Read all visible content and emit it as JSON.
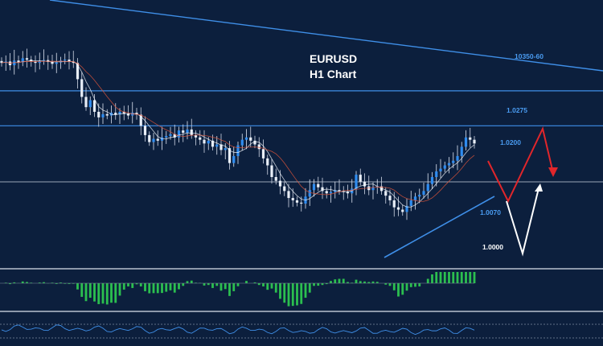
{
  "title": {
    "symbol": "EURUSD",
    "timeframe": "H1 Chart"
  },
  "levels": [
    {
      "name": "trendline-top",
      "label": "10350-60",
      "color": "#4a9cf2"
    },
    {
      "name": "r-1-0275",
      "label": "1.0275",
      "color": "#4a9cf2",
      "value": 1.0275
    },
    {
      "name": "r-1-0200",
      "label": "1.0200",
      "color": "#4a9cf2",
      "value": 1.02
    },
    {
      "name": "s-1-0070",
      "label": "1.0070",
      "color": "#4a9cf2",
      "value": 1.007
    },
    {
      "name": "s-1-0000",
      "label": "1.0000",
      "color": "#ffffff",
      "value": 1.0
    }
  ],
  "chart_data": {
    "type": "candlestick",
    "symbol": "EURUSD",
    "timeframe": "H1",
    "candles_close": [
      1.0335,
      1.0338,
      1.033,
      1.034,
      1.0336,
      1.0345,
      1.0342,
      1.0338,
      1.0335,
      1.0339,
      1.0341,
      1.0337,
      1.0333,
      1.0336,
      1.034,
      1.0342,
      1.0338,
      1.0335,
      1.03,
      1.0262,
      1.024,
      1.0255,
      1.023,
      1.0218,
      1.0225,
      1.0222,
      1.0228,
      1.0224,
      1.023,
      1.0226,
      1.0222,
      1.0228,
      1.0224,
      1.02,
      1.018,
      1.0165,
      1.0172,
      1.0168,
      1.0175,
      1.0178,
      1.0182,
      1.0175,
      1.019,
      1.0185,
      1.0192,
      1.018,
      1.0175,
      1.017,
      1.0162,
      1.0168,
      1.0155,
      1.016,
      1.0148,
      1.0152,
      1.012,
      1.0135,
      1.0158,
      1.017,
      1.0175,
      1.0168,
      1.016,
      1.015,
      1.013,
      1.0115,
      1.009,
      1.0082,
      1.007,
      1.006,
      1.0045,
      1.004,
      1.0035,
      1.0033,
      1.0048,
      1.0062,
      1.0075,
      1.0068,
      1.006,
      1.0055,
      1.0058,
      1.0062,
      1.006,
      1.0058,
      1.0055,
      1.0065,
      1.0095,
      1.008,
      1.007,
      1.0062,
      1.0068,
      1.007,
      1.006,
      1.005,
      1.004,
      1.0025,
      1.002,
      1.0015,
      1.0028,
      1.004,
      1.0048,
      1.0052,
      1.006,
      1.0075,
      1.009,
      1.0102,
      1.0108,
      1.0115,
      1.012,
      1.0125,
      1.0135,
      1.0155,
      1.0175,
      1.017,
      1.0162
    ],
    "price_range": [
      0.99,
      1.047
    ],
    "levels": [
      1.0275,
      1.02,
      1.007,
      1.0
    ],
    "projections": [
      {
        "color": "#e0262b",
        "path": [
          1.019,
          1.011,
          1.0225,
          1.015
        ]
      },
      {
        "color": "#ffffff",
        "path": [
          1.0,
          1.0135
        ]
      }
    ],
    "indicators": {
      "histogram": "green",
      "oscillator": "blue"
    }
  }
}
